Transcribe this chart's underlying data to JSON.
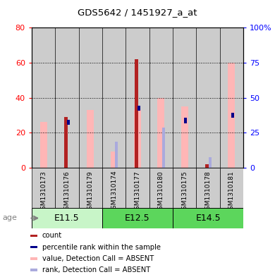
{
  "title": "GDS5642 / 1451927_a_at",
  "samples": [
    "GSM1310173",
    "GSM1310176",
    "GSM1310179",
    "GSM1310174",
    "GSM1310177",
    "GSM1310180",
    "GSM1310175",
    "GSM1310178",
    "GSM1310181"
  ],
  "age_groups": [
    {
      "label": "E11.5",
      "start": 0,
      "end": 3,
      "color": "#c8f5c8"
    },
    {
      "label": "E12.5",
      "start": 3,
      "end": 6,
      "color": "#5cd65c"
    },
    {
      "label": "E14.5",
      "start": 6,
      "end": 9,
      "color": "#5cd65c"
    }
  ],
  "value_absent": [
    26,
    0,
    33,
    9,
    33,
    40,
    35,
    0,
    60
  ],
  "rank_absent": [
    0,
    0,
    0,
    15,
    0,
    23,
    0,
    6,
    0
  ],
  "count": [
    0,
    29,
    0,
    0,
    62,
    0,
    0,
    2,
    0
  ],
  "pct_rank": [
    0,
    26,
    0,
    0,
    34,
    0,
    27,
    0,
    30
  ],
  "left_ylim": [
    0,
    80
  ],
  "right_ylim": [
    0,
    100
  ],
  "left_yticks": [
    0,
    20,
    40,
    60,
    80
  ],
  "right_yticks": [
    0,
    25,
    50,
    75,
    100
  ],
  "right_yticklabels": [
    "0",
    "25",
    "50",
    "75",
    "100%"
  ],
  "color_count": "#b22222",
  "color_pct": "#00008b",
  "color_value_absent": "#ffb6b6",
  "color_rank_absent": "#aaaadd",
  "sample_bg_color": "#cccccc",
  "legend_items": [
    {
      "color": "#b22222",
      "label": "count"
    },
    {
      "color": "#00008b",
      "label": "percentile rank within the sample"
    },
    {
      "color": "#ffb6b6",
      "label": "value, Detection Call = ABSENT"
    },
    {
      "color": "#aaaadd",
      "label": "rank, Detection Call = ABSENT"
    }
  ]
}
